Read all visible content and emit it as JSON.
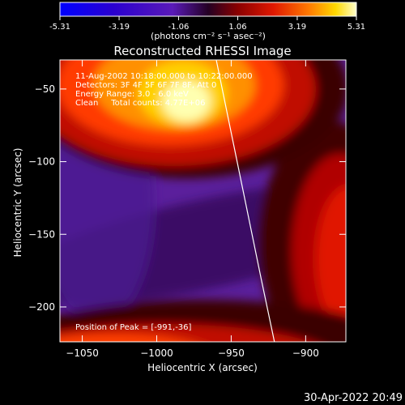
{
  "colorbar": {
    "tick_labels": [
      "-5.31",
      "-3.19",
      "-1.06",
      "1.06",
      "3.19",
      "5.31"
    ],
    "tick_values": [
      -5.31,
      -3.19,
      -1.06,
      1.06,
      3.19,
      5.31
    ],
    "range": [
      -5.31,
      5.31
    ],
    "units_label": "(photons cm⁻² s⁻¹ asec⁻²)"
  },
  "chart_data": {
    "type": "heatmap",
    "title": "Reconstructed RHESSI Image",
    "xlabel": "Heliocentric X (arcsec)",
    "ylabel": "Heliocentric Y (arcsec)",
    "xlim": [
      -1065,
      -873
    ],
    "ylim": [
      -224,
      -30
    ],
    "x_ticks": [
      -1050,
      -1000,
      -950,
      -900
    ],
    "y_ticks": [
      -50,
      -100,
      -150,
      -200
    ],
    "x_tick_labels": [
      "−1050",
      "−1000",
      "−950",
      "−900"
    ],
    "y_tick_labels": [
      "−50",
      "−100",
      "−150",
      "−200"
    ],
    "z_range": [
      -5.31,
      5.31
    ],
    "peak": {
      "x": -991,
      "y": -36
    },
    "limb_line": [
      [
        -960,
        -30
      ],
      [
        -950,
        -80
      ],
      [
        -940,
        -130
      ],
      [
        -930,
        -180
      ],
      [
        -921,
        -224
      ]
    ],
    "annotations": [
      "11-Aug-2002 10:18:00.000 to 10:22:00.000",
      "Detectors: 3F 4F 5F 6F 7F 8F, Att 0",
      "Energy Range: 3.0 - 6.0 keV",
      "Clean     Total counts: 4.77E+06"
    ],
    "peak_label": "Position of Peak = [-991,-36]",
    "colors": {
      "limb": "#ffffff",
      "background": "#000000"
    }
  },
  "footer": {
    "timestamp": "30-Apr-2022 20:49"
  }
}
